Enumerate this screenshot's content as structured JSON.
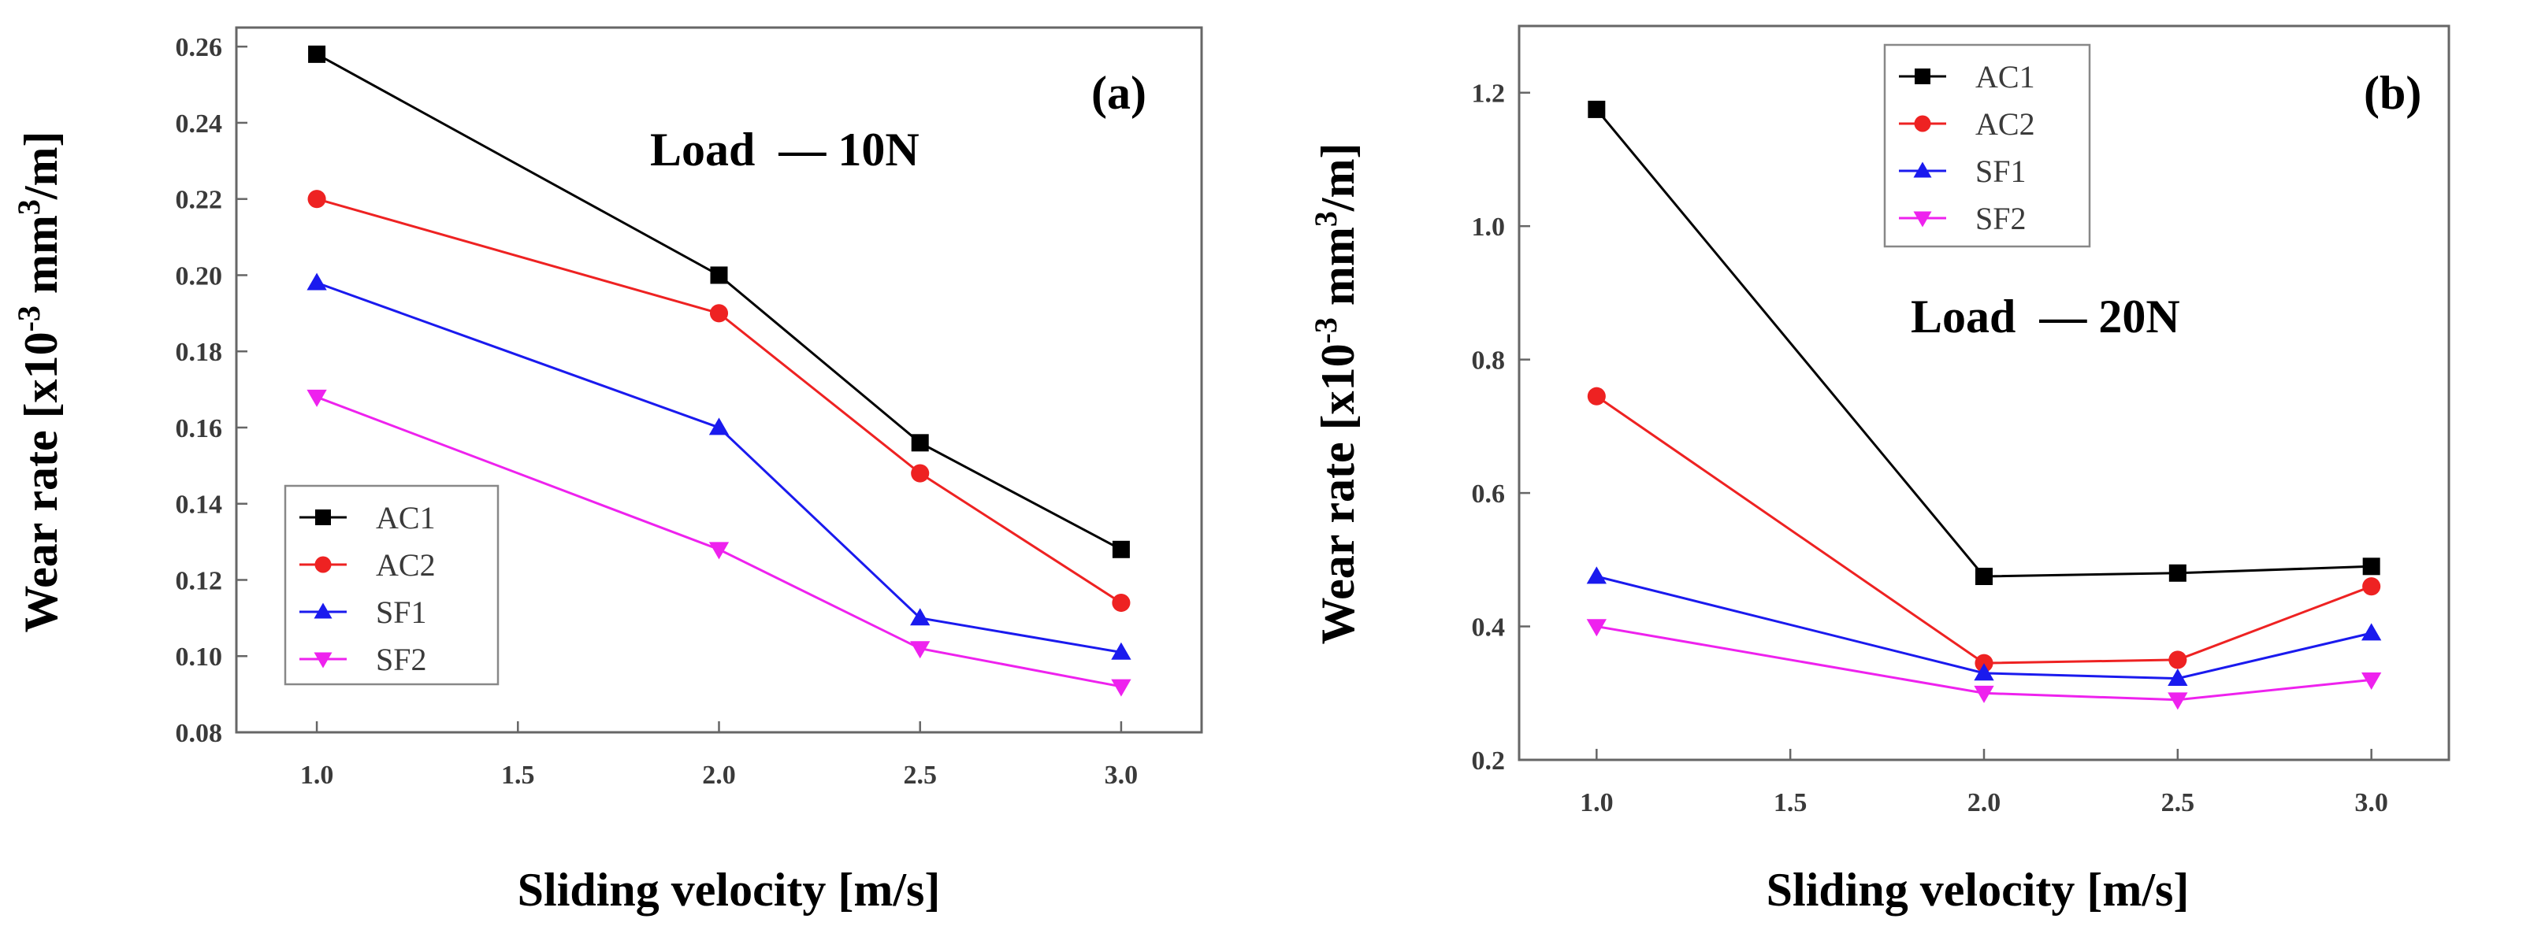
{
  "colors": {
    "AC1": "#000000",
    "AC2": "#ee2222",
    "SF1": "#1a1aee",
    "SF2": "#ee22ee",
    "axis_text": "#3a3a3a",
    "frame": "#666666"
  },
  "markers": {
    "AC1": "square",
    "AC2": "circle",
    "SF1": "triangle-up",
    "SF2": "triangle-down"
  },
  "chart_data": [
    {
      "type": "line",
      "panel_label": "(a)",
      "annotation": "Load  — 10N",
      "xlabel": "Sliding velocity [m/s]",
      "ylabel_prefix": "Wear rate [x10",
      "ylabel_exp1": "-3",
      "ylabel_mid": " mm",
      "ylabel_exp2": "3",
      "ylabel_suffix": "/m]",
      "xlim": [
        0.8,
        3.2
      ],
      "ylim": [
        0.08,
        0.265
      ],
      "x_ticks": [
        1.0,
        1.5,
        2.0,
        2.5,
        3.0
      ],
      "x_tick_labels": [
        "1.0",
        "1.5",
        "2.0",
        "2.5",
        "3.0"
      ],
      "y_ticks": [
        0.08,
        0.1,
        0.12,
        0.14,
        0.16,
        0.18,
        0.2,
        0.22,
        0.24,
        0.26
      ],
      "y_tick_labels": [
        "0.08",
        "0.10",
        "0.12",
        "0.14",
        "0.16",
        "0.18",
        "0.20",
        "0.22",
        "0.24",
        "0.26"
      ],
      "legend_position": "bottom-left",
      "x": [
        1.0,
        2.0,
        2.5,
        3.0
      ],
      "series": [
        {
          "name": "AC1",
          "values": [
            0.258,
            0.2,
            0.156,
            0.128
          ]
        },
        {
          "name": "AC2",
          "values": [
            0.22,
            0.19,
            0.148,
            0.114
          ]
        },
        {
          "name": "SF1",
          "values": [
            0.198,
            0.16,
            0.11,
            0.101
          ]
        },
        {
          "name": "SF2",
          "values": [
            0.168,
            0.128,
            0.102,
            0.092
          ]
        }
      ]
    },
    {
      "type": "line",
      "panel_label": "(b)",
      "annotation": "Load  — 20N",
      "xlabel": "Sliding velocity [m/s]",
      "ylabel_prefix": "Wear rate [x10",
      "ylabel_exp1": "-3",
      "ylabel_mid": " mm",
      "ylabel_exp2": "3",
      "ylabel_suffix": "/m]",
      "xlim": [
        0.8,
        3.2
      ],
      "ylim": [
        0.2,
        1.3
      ],
      "x_ticks": [
        1.0,
        1.5,
        2.0,
        2.5,
        3.0
      ],
      "x_tick_labels": [
        "1.0",
        "1.5",
        "2.0",
        "2.5",
        "3.0"
      ],
      "y_ticks": [
        0.2,
        0.4,
        0.6,
        0.8,
        1.0,
        1.2
      ],
      "y_tick_labels": [
        "0.2",
        "0.4",
        "0.6",
        "0.8",
        "1.0",
        "1.2"
      ],
      "legend_position": "top-left",
      "x": [
        1.0,
        2.0,
        2.5,
        3.0
      ],
      "series": [
        {
          "name": "AC1",
          "values": [
            1.175,
            0.475,
            0.48,
            0.49
          ]
        },
        {
          "name": "AC2",
          "values": [
            0.745,
            0.345,
            0.35,
            0.46
          ]
        },
        {
          "name": "SF1",
          "values": [
            0.475,
            0.33,
            0.322,
            0.39
          ]
        },
        {
          "name": "SF2",
          "values": [
            0.4,
            0.3,
            0.29,
            0.32
          ]
        }
      ]
    }
  ]
}
